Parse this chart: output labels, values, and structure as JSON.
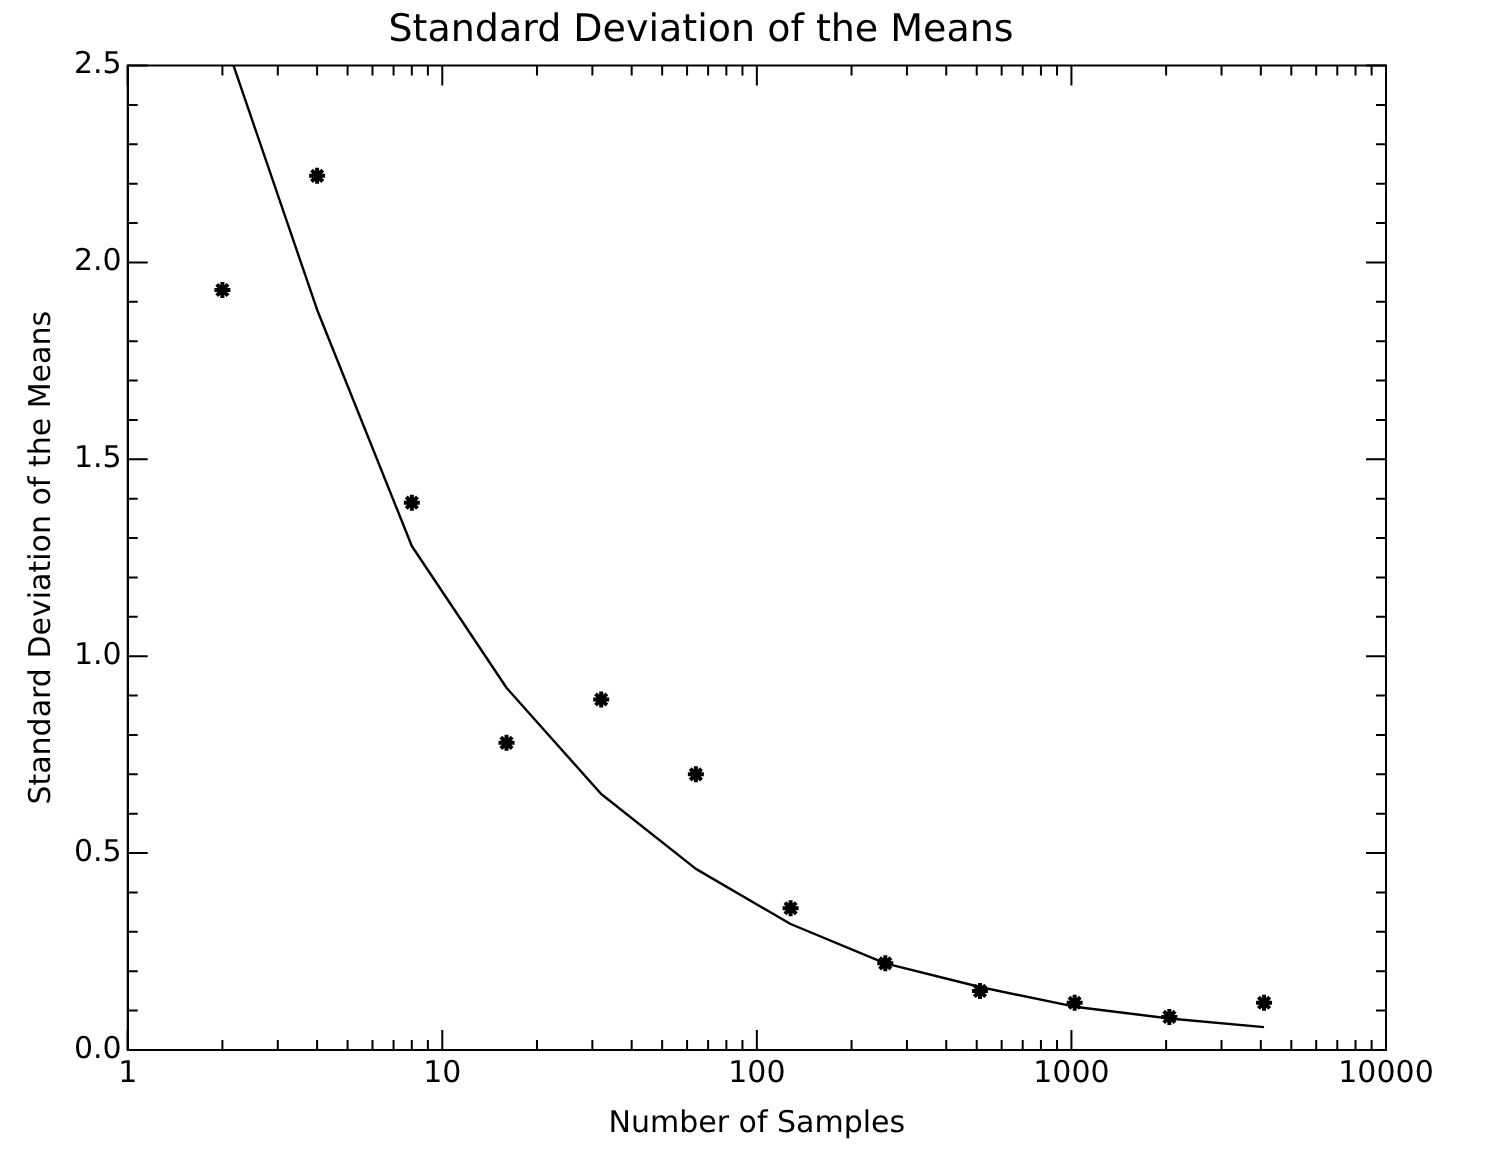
{
  "chart_data": {
    "type": "scatter",
    "title": "Standard Deviation of the Means",
    "xlabel": "Number of Samples",
    "ylabel": "Standard Deviation of the Means",
    "log": "x",
    "grid": false,
    "legend": false,
    "xlim": [
      1,
      10000
    ],
    "ylim": [
      0,
      2.5
    ],
    "xticks": [
      1,
      {
        "value": 2,
        "label": null
      },
      {
        "value": 3,
        "label": null
      },
      {
        "value": 4,
        "label": null
      },
      {
        "value": 5,
        "label": null
      },
      {
        "value": 6,
        "label": null
      },
      {
        "value": 7,
        "label": null
      },
      {
        "value": 8,
        "label": null
      },
      {
        "value": 9,
        "label": null
      },
      10,
      {
        "value": 20,
        "label": null
      },
      {
        "value": 30,
        "label": null
      },
      {
        "value": 40,
        "label": null
      },
      {
        "value": 50,
        "label": null
      },
      {
        "value": 60,
        "label": null
      },
      {
        "value": 70,
        "label": null
      },
      {
        "value": 80,
        "label": null
      },
      {
        "value": 90,
        "label": null
      },
      100,
      {
        "value": 200,
        "label": null
      },
      {
        "value": 300,
        "label": null
      },
      {
        "value": 400,
        "label": null
      },
      {
        "value": 500,
        "label": null
      },
      {
        "value": 600,
        "label": null
      },
      {
        "value": 700,
        "label": null
      },
      {
        "value": 800,
        "label": null
      },
      {
        "value": 900,
        "label": null
      },
      1000,
      {
        "value": 2000,
        "label": null
      },
      {
        "value": 3000,
        "label": null
      },
      {
        "value": 4000,
        "label": null
      },
      {
        "value": 5000,
        "label": null
      },
      {
        "value": 6000,
        "label": null
      },
      {
        "value": 7000,
        "label": null
      },
      {
        "value": 8000,
        "label": null
      },
      {
        "value": 9000,
        "label": null
      },
      10000
    ],
    "yticks": [
      {
        "value": 0,
        "label": "0.0"
      },
      {
        "value": 0.1,
        "label": null
      },
      {
        "value": 0.2,
        "label": null
      },
      {
        "value": 0.3,
        "label": null
      },
      {
        "value": 0.4,
        "label": null
      },
      0.5,
      {
        "value": 0.6,
        "label": null
      },
      {
        "value": 0.7,
        "label": null
      },
      {
        "value": 0.8,
        "label": null
      },
      {
        "value": 0.9,
        "label": null
      },
      {
        "value": 1,
        "label": "1.0"
      },
      {
        "value": 1.1,
        "label": null
      },
      {
        "value": 1.2,
        "label": null
      },
      {
        "value": 1.3,
        "label": null
      },
      {
        "value": 1.4,
        "label": null
      },
      1.5,
      {
        "value": 1.6,
        "label": null
      },
      {
        "value": 1.7,
        "label": null
      },
      {
        "value": 1.8,
        "label": null
      },
      {
        "value": 1.9,
        "label": null
      },
      {
        "value": 2,
        "label": "2.0"
      },
      {
        "value": 2.1,
        "label": null
      },
      {
        "value": 2.2,
        "label": null
      },
      {
        "value": 2.3,
        "label": null
      },
      {
        "value": 2.4,
        "label": null
      },
      2.5
    ],
    "series": [
      {
        "marker": "cross",
        "color": "#000000",
        "x": [
          2,
          4,
          8,
          16,
          32,
          64,
          128,
          256,
          512,
          1024,
          2048,
          4096
        ],
        "values": [
          1.93,
          2.22,
          1.39,
          0.78,
          0.89,
          0.7,
          0.36,
          0.22,
          0.15,
          0.12,
          0.084,
          0.12
        ]
      },
      {
        "type": "line",
        "marker": "none",
        "line_style": "solid",
        "color": "#000000",
        "x": [
          2.17,
          4,
          8,
          16,
          32,
          64,
          128,
          256,
          512,
          1024,
          2048,
          4096
        ],
        "values": [
          2.5,
          1.88,
          1.28,
          0.92,
          0.65,
          0.46,
          0.32,
          0.22,
          0.16,
          0.11,
          0.08,
          0.058
        ]
      }
    ]
  }
}
